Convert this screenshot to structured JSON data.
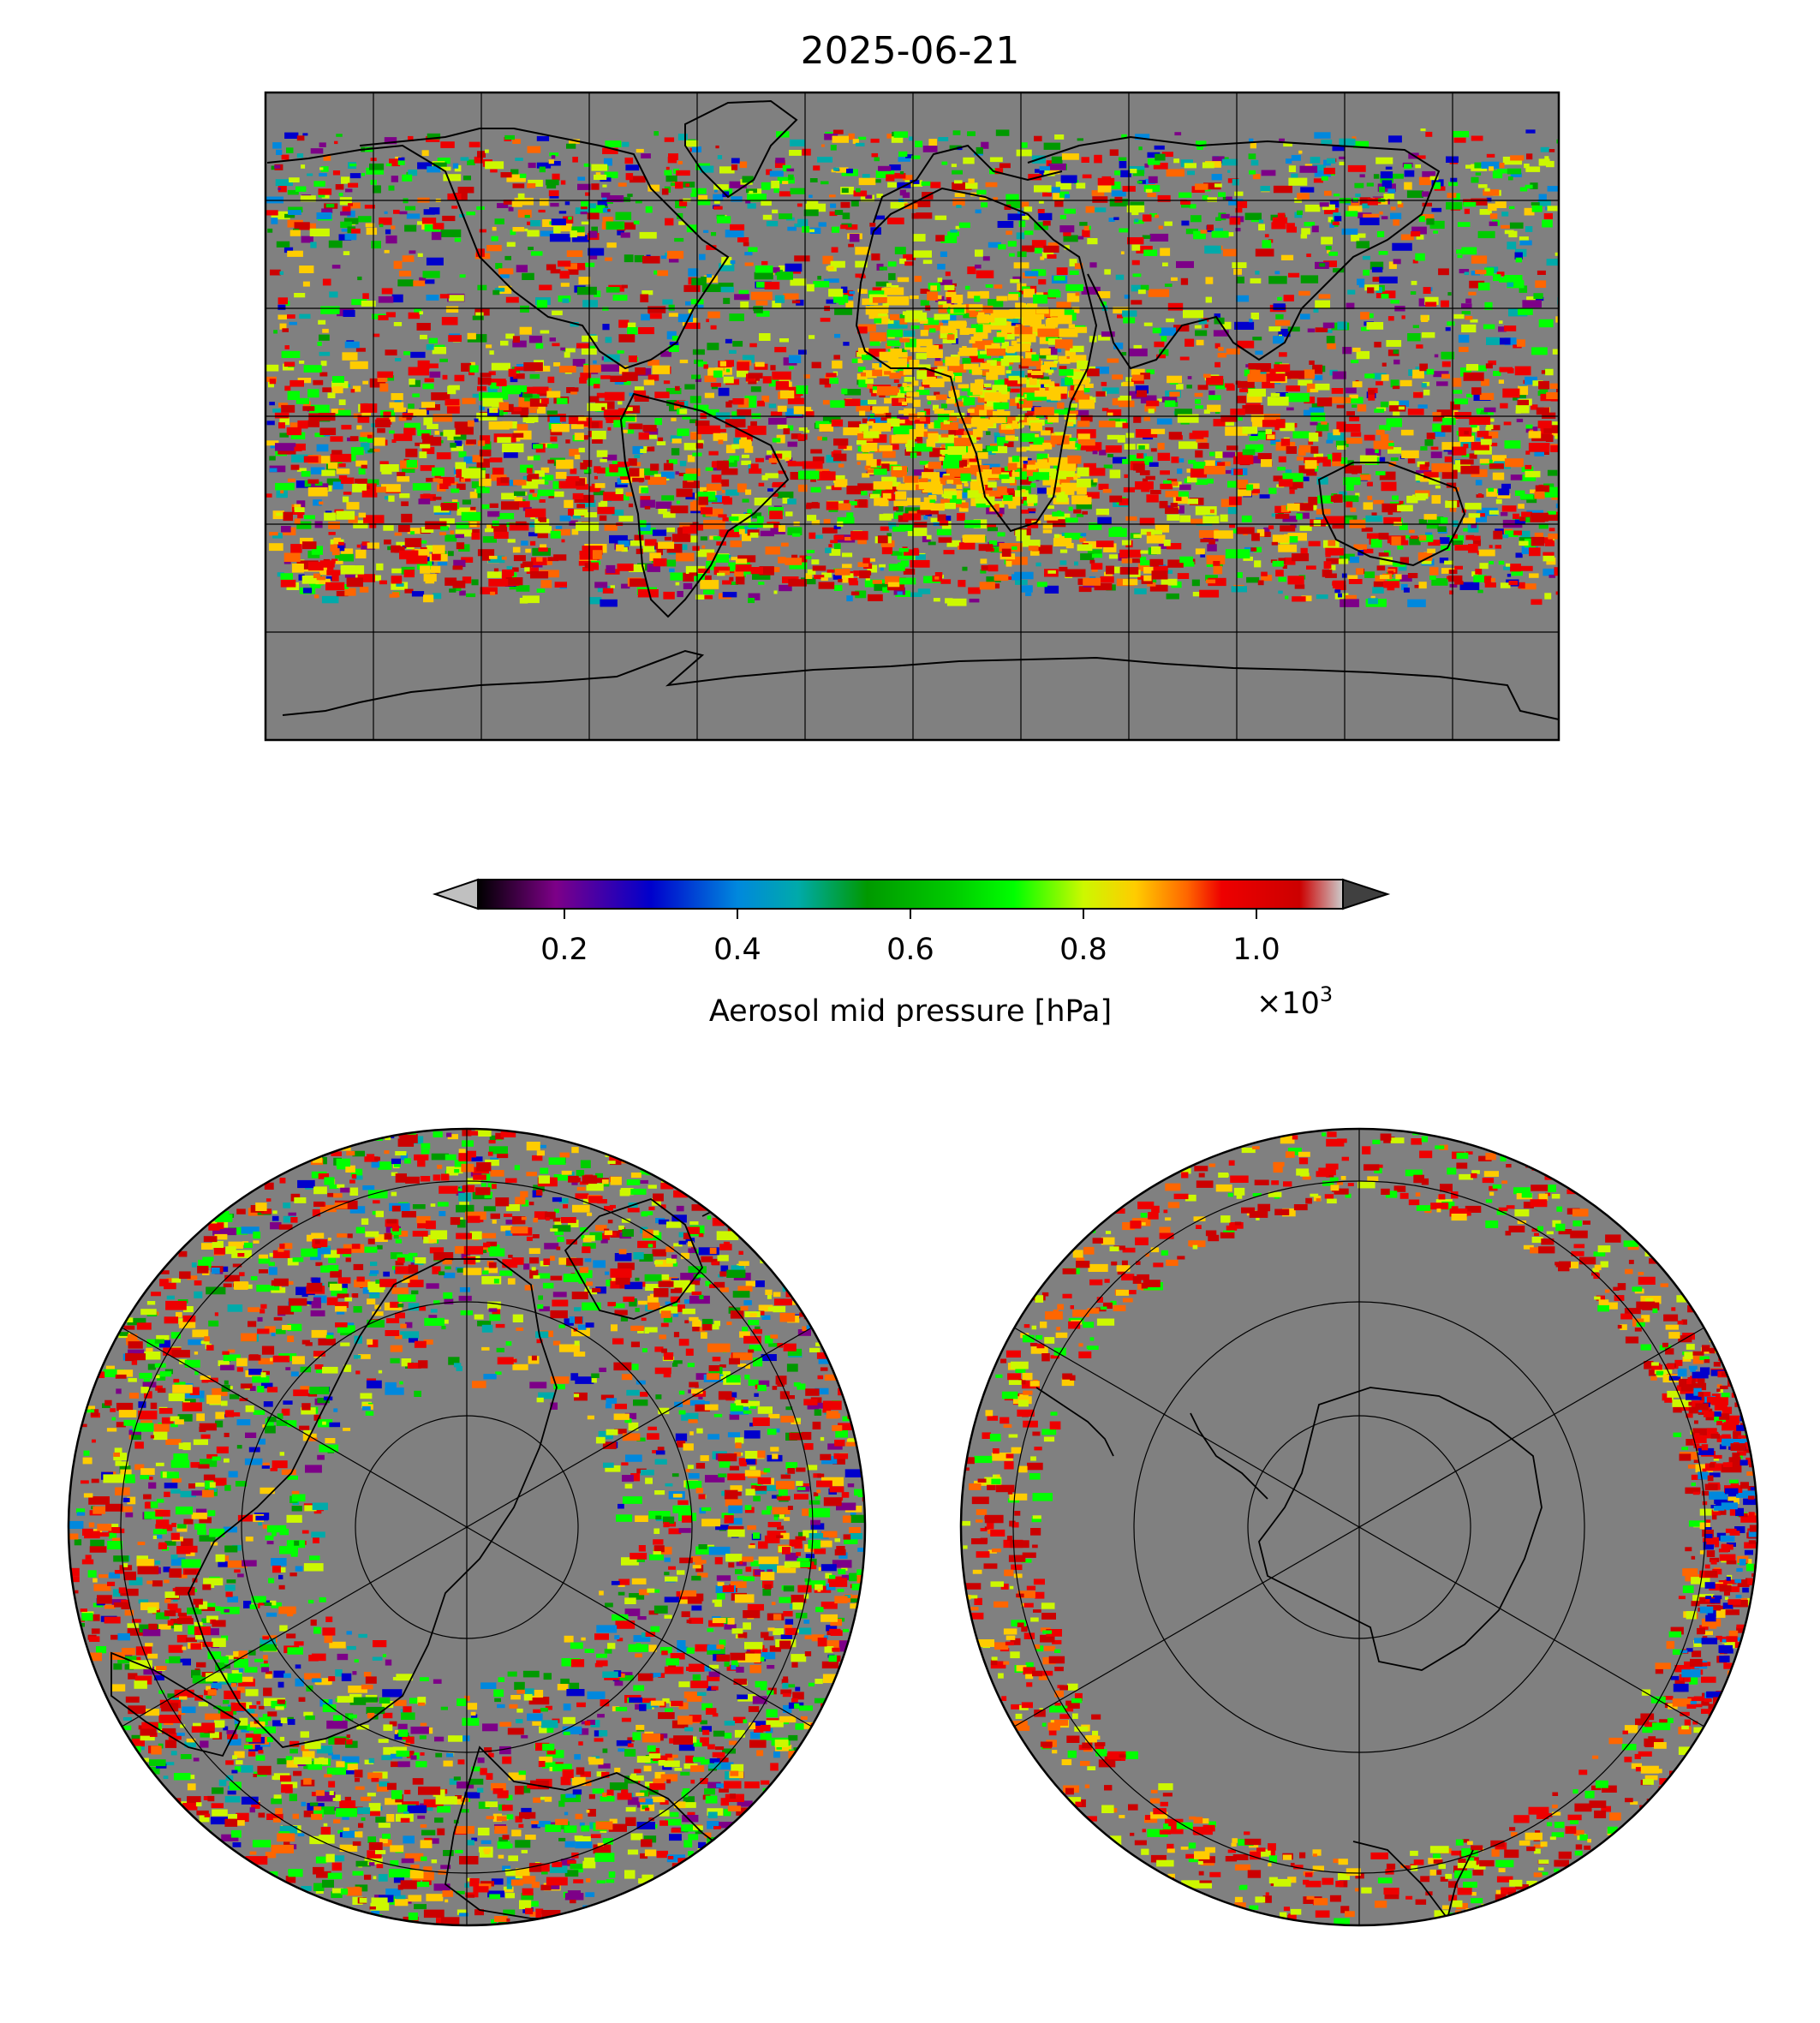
{
  "figure": {
    "title": "2025-06-21"
  },
  "maps": [
    {
      "projection": "plate-carree",
      "graticule_deg": 30,
      "background": "#808080"
    },
    {
      "projection": "north-polar-stereographic",
      "background": "#808080"
    },
    {
      "projection": "south-polar-stereographic",
      "background": "#808080"
    }
  ],
  "colorbar": {
    "label": "Aerosol mid pressure [hPa]",
    "offset_text": "×10",
    "offset_exponent": "3",
    "ticks": [
      "0.2",
      "0.4",
      "0.6",
      "0.8",
      "1.0"
    ],
    "tick_values": [
      0.2,
      0.4,
      0.6,
      0.8,
      1.0
    ],
    "range": [
      0.1,
      1.1
    ],
    "colormap": "nipy_spectral",
    "under_color": "#c0c0c0",
    "over_color": "#404040",
    "stops": [
      "#000000",
      "#7d0088",
      "#0000cc",
      "#0088dd",
      "#00aaaa",
      "#009900",
      "#00cc00",
      "#00ff00",
      "#ccf800",
      "#ffcc00",
      "#ff6600",
      "#ee0000",
      "#cc0000",
      "#cccccc"
    ]
  }
}
